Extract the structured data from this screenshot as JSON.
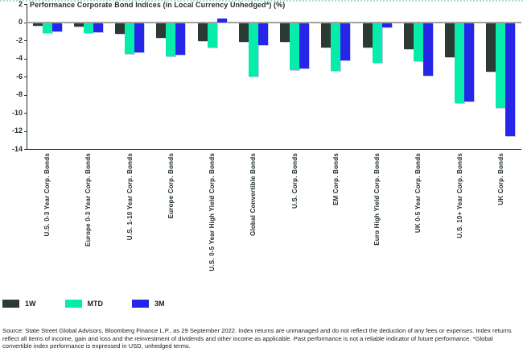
{
  "title": "Performance Corporate Bond Indices (in Local Currency Unhedged*) (%)",
  "legend": [
    {
      "label": "1W",
      "color": "#2b3b33"
    },
    {
      "label": "MTD",
      "color": "#06edab"
    },
    {
      "label": "3M",
      "color": "#2626e8"
    }
  ],
  "footer": "Source: State Street Global Advisors, Bloomberg Finance L.P., as 29 September 2022. Index returns are unmanaged and do not reflect the deduction of any fees or expenses. Index returns reflect all items of income, gain and loss and the reinvestment of dividends and other income as applicable. Past performance is not a reliable indicator of future performance. *Global convertible index performance is expressed in USD, unhedged terms.",
  "chart_data": {
    "type": "bar",
    "title": "Performance Corporate Bond Indices (in Local Currency Unhedged*) (%)",
    "xlabel": "",
    "ylabel": "",
    "ylim": [
      -14,
      2
    ],
    "ytick_step": 2,
    "grid": false,
    "legend_position": "bottom",
    "categories": [
      "U.S. 0-3 Year Corp. Bonds",
      "Europe 0-3 Year Corp. Bonds",
      "U.S. 1-10 Year Corp. Bonds",
      "Europe Corp. Bonds",
      "U.S. 0-5 Year High Yield Corp. Bonds",
      "Global Convertible Bonds",
      "U.S. Corp. Bonds",
      "EM Corp. Bonds",
      "Euro High Yield Corp. Bonds",
      "UK 0-5 Year Corp. Bonds",
      "U.S. 10+ Year Corp. Bonds",
      "UK Corp. Bonds"
    ],
    "series": [
      {
        "name": "1W",
        "color": "#2b3b33",
        "values": [
          -0.3,
          -0.4,
          -1.2,
          -1.6,
          -2.0,
          -2.1,
          -2.1,
          -2.7,
          -2.7,
          -2.9,
          -3.8,
          -5.4
        ]
      },
      {
        "name": "MTD",
        "color": "#06edab",
        "values": [
          -1.1,
          -1.1,
          -3.4,
          -3.7,
          -2.7,
          -5.9,
          -5.2,
          -5.3,
          -4.4,
          -4.2,
          -8.8,
          -9.4
        ]
      },
      {
        "name": "3M",
        "color": "#2626e8",
        "values": [
          -0.9,
          -1.0,
          -3.2,
          -3.5,
          0.4,
          -2.4,
          -5.0,
          -4.1,
          -0.5,
          -5.8,
          -8.7,
          -12.5
        ]
      }
    ]
  }
}
